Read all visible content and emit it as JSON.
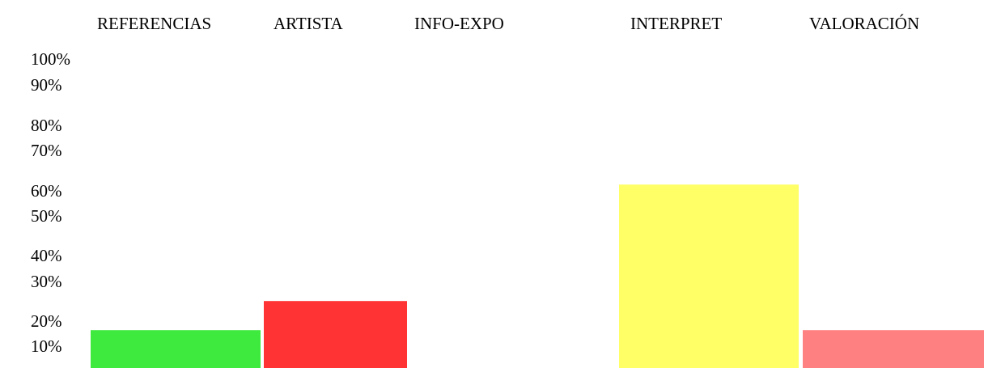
{
  "chart_data": {
    "type": "bar",
    "categories": [
      "REFERENCIAS",
      "ARTISTA",
      "INFO-EXPO",
      "INTERPRET",
      "VALORACIÓN"
    ],
    "values": [
      13,
      23,
      0,
      63,
      13
    ],
    "colors": [
      "#3eea3e",
      "#ff3333",
      "#ffffff",
      "#ffff66",
      "#ff8080"
    ],
    "y_ticks": [
      "100%",
      "90%",
      "80%",
      "70%",
      "60%",
      "50%",
      "40%",
      "30%",
      "20%",
      "10%"
    ],
    "ylim": [
      0,
      100
    ],
    "category_axis_position": "top",
    "grid": false,
    "legend": "none"
  }
}
